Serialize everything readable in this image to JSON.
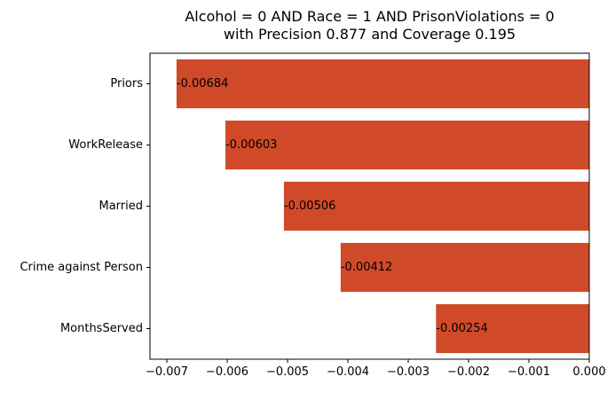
{
  "chart_data": {
    "type": "bar",
    "orientation": "horizontal",
    "title": "Alcohol = 0 AND Race = 1 AND PrisonViolations = 0\nwith Precision 0.877 and Coverage 0.195",
    "xlabel": "",
    "ylabel": "",
    "categories": [
      "Priors",
      "WorkRelease",
      "Married",
      "Crime against Person",
      "MonthsServed"
    ],
    "values": [
      -0.00684,
      -0.00603,
      -0.00506,
      -0.00412,
      -0.00254
    ],
    "data_labels": [
      "-0.00684",
      "-0.00603",
      "-0.00506",
      "-0.00412",
      "-0.00254"
    ],
    "xlim": [
      -0.00728,
      0.0
    ],
    "xticks": [
      -0.007,
      -0.006,
      -0.005,
      -0.004,
      -0.003,
      -0.002,
      -0.001,
      0.0
    ],
    "xtick_labels": [
      "−0.007",
      "−0.006",
      "−0.005",
      "−0.004",
      "−0.003",
      "−0.002",
      "−0.001",
      "0.000"
    ],
    "grid": false,
    "legend": "none",
    "colors": {
      "bar": "#d04a2a",
      "axis": "#000000",
      "text": "#000000",
      "background": "#ffffff"
    }
  }
}
